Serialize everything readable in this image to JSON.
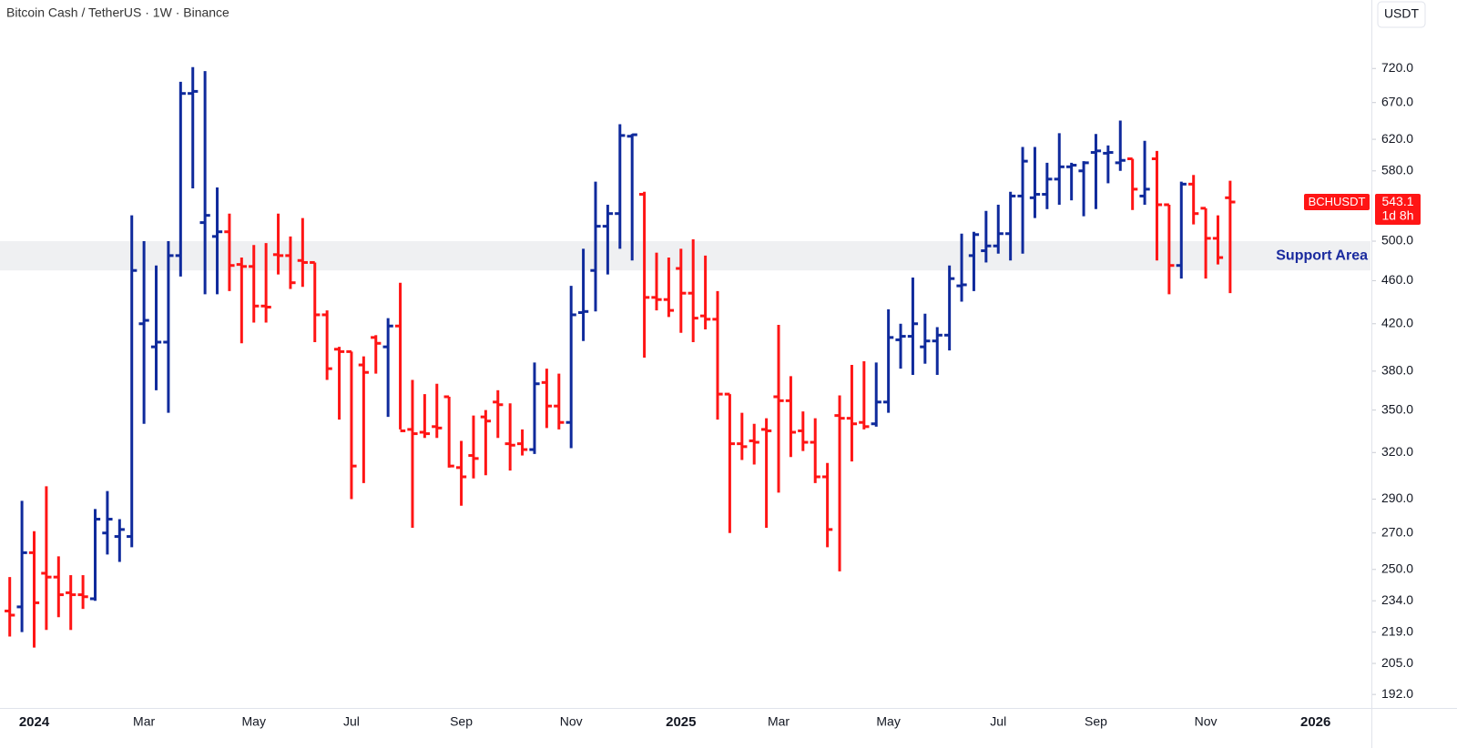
{
  "chart_data": {
    "type": "ohlc",
    "title": "Bitcoin Cash / TetherUS · 1W · Binance",
    "currency": "USDT",
    "symbol": "BCHUSDT",
    "countdown": "1d 8h",
    "log_scale": true,
    "grid": false,
    "up_color": "#0f2a9c",
    "down_color": "#ff1515",
    "categories": [
      null,
      null,
      "2024",
      null,
      null,
      null,
      null,
      null,
      null,
      null,
      null,
      "Mar",
      null,
      null,
      null,
      null,
      null,
      null,
      null,
      null,
      "May",
      null,
      null,
      null,
      null,
      null,
      null,
      null,
      "Jul",
      null,
      null,
      null,
      null,
      null,
      null,
      null,
      null,
      "Sep",
      null,
      null,
      null,
      null,
      null,
      null,
      null,
      null,
      "Nov",
      null,
      null,
      null,
      null,
      null,
      null,
      null,
      null,
      "2025",
      null,
      null,
      null,
      null,
      null,
      null,
      null,
      "Mar",
      null,
      null,
      null,
      null,
      null,
      null,
      null,
      null,
      "May",
      null,
      null,
      null,
      null,
      null,
      null,
      null,
      null,
      "Jul",
      null,
      null,
      null,
      null,
      null,
      null,
      null,
      "Sep",
      null,
      null,
      null,
      null,
      null,
      null,
      null,
      null,
      "Nov",
      null,
      null,
      null,
      null,
      null,
      null,
      null,
      null,
      "2026",
      null,
      null,
      null,
      null
    ],
    "open": [
      229,
      231,
      259,
      248,
      246,
      238,
      237,
      235,
      270,
      268,
      268,
      420,
      400,
      404,
      485,
      683,
      520,
      505,
      510,
      476,
      474,
      436,
      486,
      485,
      480,
      478,
      428,
      398,
      396,
      385,
      408,
      400,
      418,
      336,
      334,
      338,
      360,
      310,
      318,
      345,
      356,
      326,
      326,
      322,
      371,
      353,
      341,
      430,
      470,
      516,
      530,
      624,
      552,
      444,
      442,
      472,
      448,
      427,
      424,
      362,
      326,
      328,
      336,
      360,
      357,
      335,
      327,
      304,
      346,
      344,
      341,
      340,
      356,
      406,
      409,
      400,
      405,
      410,
      455,
      485,
      490,
      495,
      508,
      550,
      548,
      552,
      570,
      585,
      580,
      603,
      602,
      590,
      595,
      550,
      595,
      540,
      475,
      564,
      536,
      503,
      548,
      null,
      null,
      null,
      null,
      null,
      null,
      null,
      null,
      null,
      null,
      null
    ],
    "high": [
      246,
      289,
      271,
      298,
      257,
      247,
      247,
      284,
      295,
      278,
      528,
      500,
      475,
      500,
      700,
      722,
      716,
      560,
      530,
      483,
      496,
      498,
      530,
      505,
      525,
      478,
      432,
      400,
      396,
      392,
      410,
      425,
      458,
      373,
      362,
      370,
      360,
      328,
      346,
      350,
      365,
      355,
      336,
      387,
      382,
      378,
      455,
      492,
      567,
      540,
      640,
      627,
      555,
      488,
      483,
      492,
      502,
      485,
      450,
      362,
      348,
      340,
      344,
      419,
      376,
      349,
      344,
      313,
      361,
      385,
      388,
      387,
      433,
      420,
      463,
      429,
      417,
      475,
      508,
      510,
      533,
      540,
      555,
      610,
      610,
      590,
      628,
      590,
      592,
      627,
      612,
      645,
      595,
      618,
      605,
      540,
      567,
      575,
      536,
      528,
      568,
      null,
      null,
      null,
      null,
      null,
      null,
      null,
      null,
      null,
      null,
      null
    ],
    "low": [
      217,
      219,
      212,
      220,
      226,
      220,
      230,
      234,
      258,
      254,
      262,
      340,
      365,
      348,
      464,
      559,
      447,
      447,
      450,
      403,
      421,
      421,
      466,
      452,
      454,
      404,
      373,
      343,
      290,
      300,
      378,
      345,
      336,
      273,
      330,
      330,
      310,
      286,
      303,
      305,
      330,
      308,
      318,
      319,
      337,
      336,
      323,
      405,
      431,
      466,
      492,
      480,
      391,
      432,
      426,
      412,
      404,
      415,
      343,
      270,
      315,
      312,
      273,
      294,
      317,
      321,
      300,
      262,
      249,
      314,
      336,
      338,
      348,
      382,
      377,
      386,
      377,
      397,
      440,
      450,
      478,
      487,
      480,
      487,
      525,
      535,
      540,
      545,
      527,
      535,
      565,
      580,
      534,
      540,
      480,
      447,
      462,
      518,
      462,
      476,
      448,
      null,
      null,
      null,
      null,
      null,
      null,
      null,
      null,
      null,
      null,
      null
    ],
    "close": [
      227,
      259,
      233,
      246,
      237,
      237,
      236,
      278,
      278,
      272,
      470,
      423,
      404,
      485,
      683,
      686,
      528,
      510,
      475,
      474,
      436,
      435,
      485,
      458,
      478,
      428,
      382,
      396,
      311,
      379,
      403,
      418,
      335,
      333,
      333,
      337,
      311,
      304,
      316,
      342,
      354,
      325,
      322,
      370,
      353,
      341,
      428,
      431,
      516,
      530,
      625,
      626,
      444,
      442,
      432,
      448,
      425,
      424,
      362,
      326,
      324,
      327,
      335,
      357,
      334,
      327,
      304,
      272,
      344,
      340,
      338,
      356,
      408,
      409,
      420,
      405,
      410,
      462,
      456,
      507,
      495,
      508,
      550,
      592,
      552,
      570,
      585,
      587,
      590,
      605,
      603,
      593,
      558,
      558,
      540,
      475,
      564,
      530,
      503,
      483,
      543.1,
      null,
      null,
      null,
      null,
      null,
      null,
      null,
      null,
      null,
      null,
      null
    ],
    "ylim": [
      186.6,
      832
    ],
    "yticks": [
      {
        "value": 192,
        "label": "192.0"
      },
      {
        "value": 205,
        "label": "205.0"
      },
      {
        "value": 219,
        "label": "219.0"
      },
      {
        "value": 234,
        "label": "234.0"
      },
      {
        "value": 250,
        "label": "250.0"
      },
      {
        "value": 270,
        "label": "270.0"
      },
      {
        "value": 290,
        "label": "290.0"
      },
      {
        "value": 320,
        "label": "320.0"
      },
      {
        "value": 350,
        "label": "350.0"
      },
      {
        "value": 380,
        "label": "380.0"
      },
      {
        "value": 420,
        "label": "420.0"
      },
      {
        "value": 460,
        "label": "460.0"
      },
      {
        "value": 500,
        "label": "500.0"
      },
      {
        "value": 580,
        "label": "580.0"
      },
      {
        "value": 620,
        "label": "620.0"
      },
      {
        "value": 670,
        "label": "670.0"
      },
      {
        "value": 720,
        "label": "720.0"
      }
    ],
    "support_area": {
      "label": "Support Area",
      "low": 470,
      "high": 500,
      "color": "#eff0f2",
      "text_color": "#1a2a9e"
    }
  }
}
